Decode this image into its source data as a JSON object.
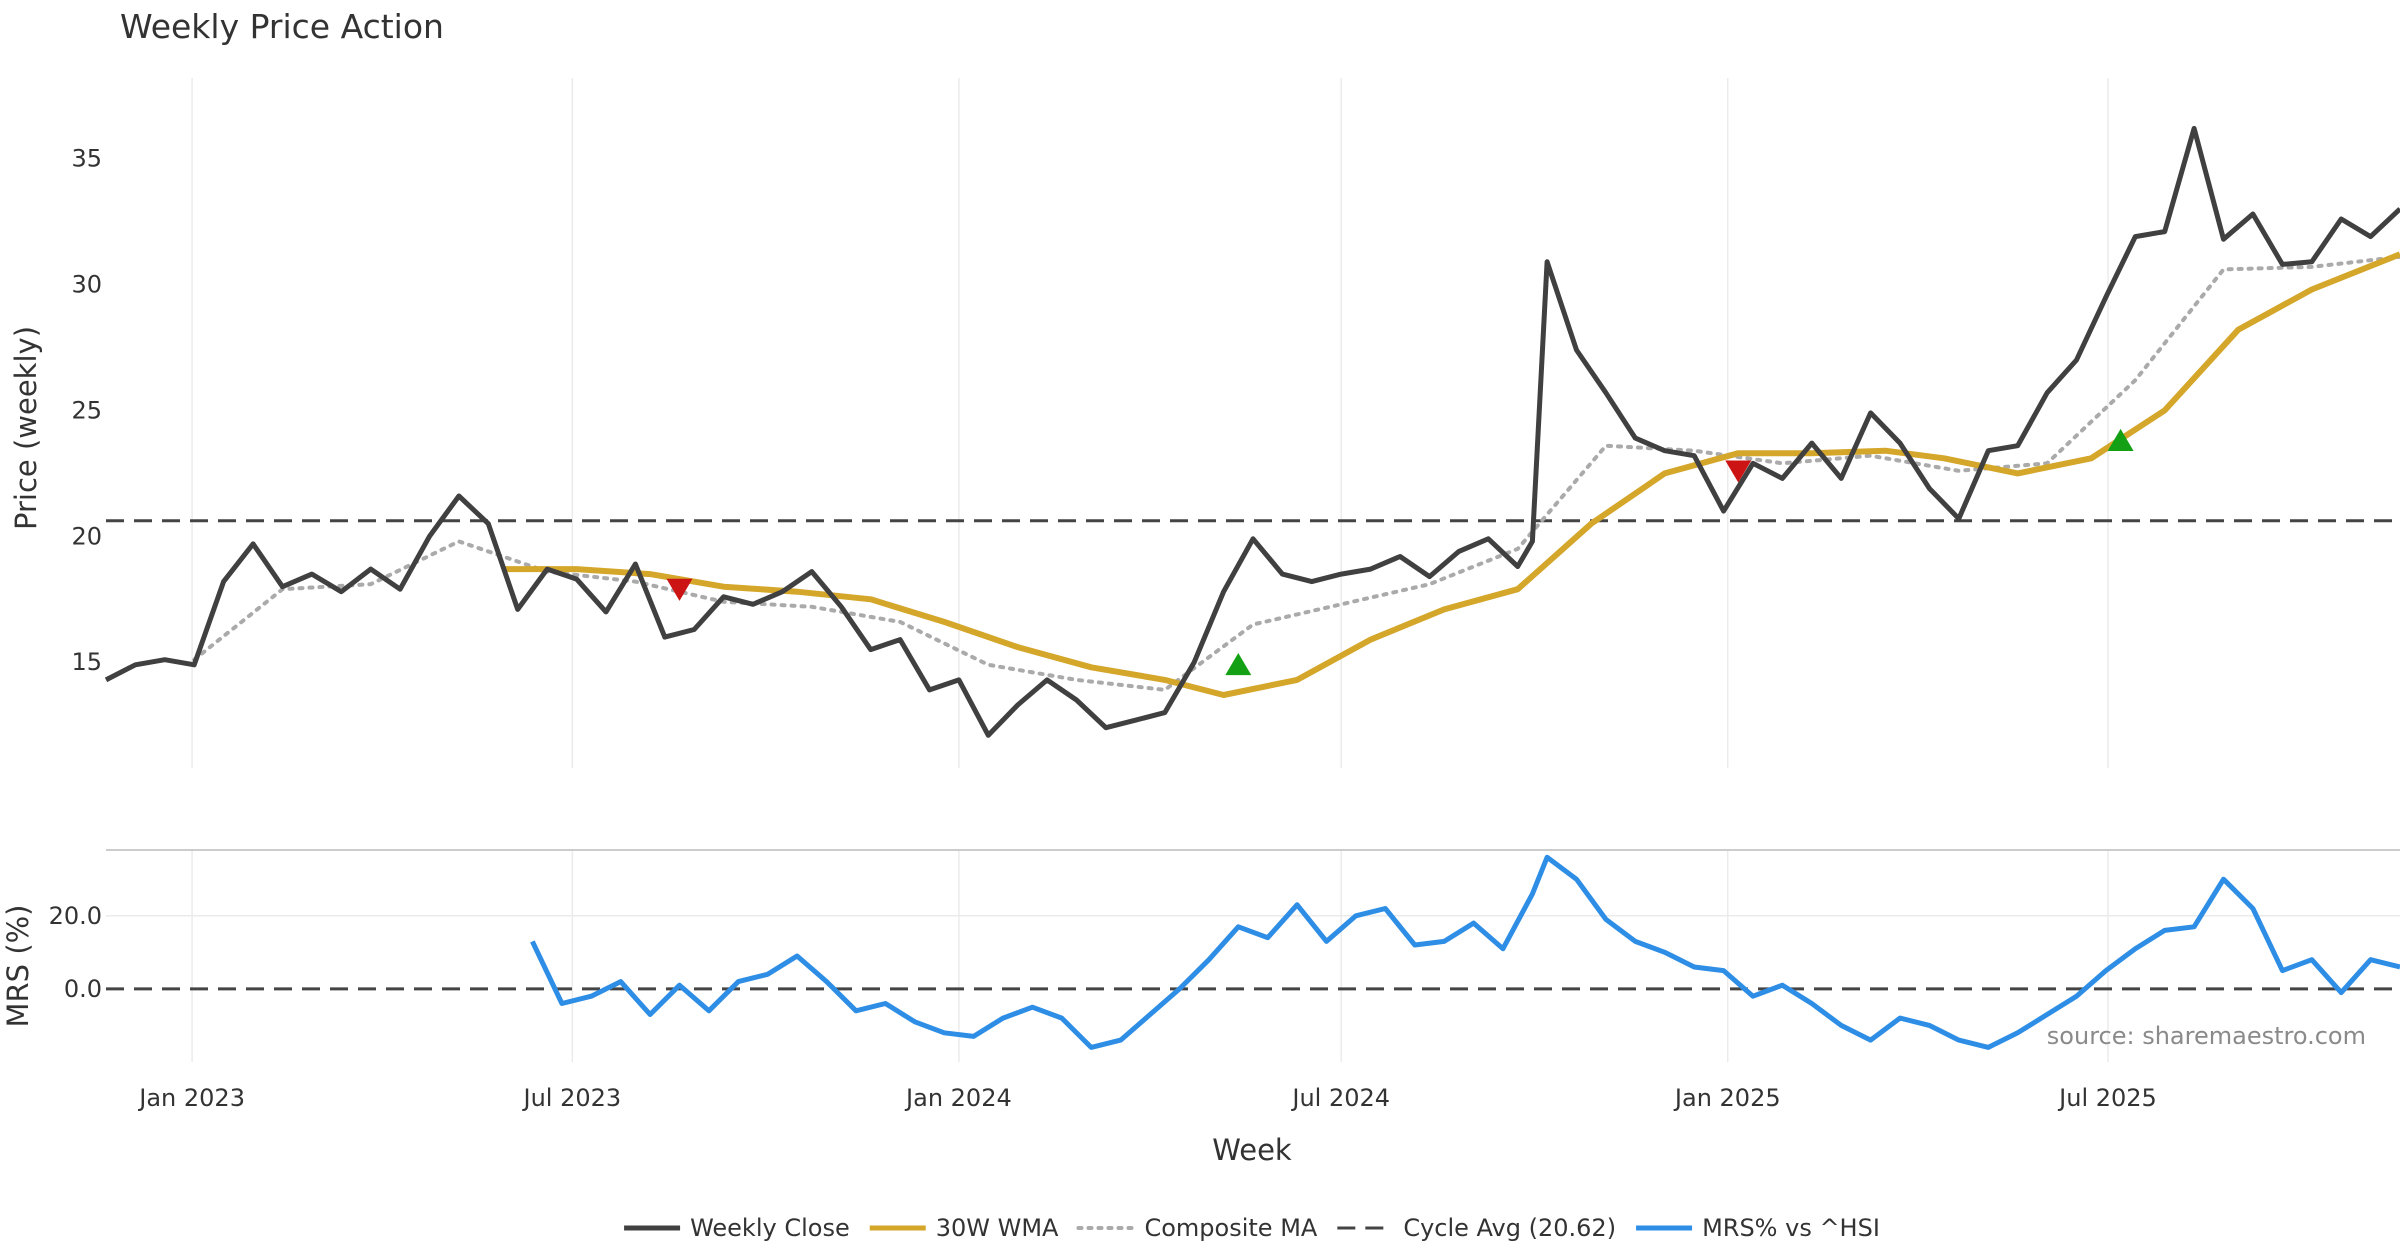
{
  "chart_data": {
    "type": "line",
    "title": "Weekly Price Action",
    "source_note": "source: sharemaestro.com",
    "xlabel": "Week",
    "x_ticks": [
      {
        "date": "2023-01-01",
        "label": "Jan 2023"
      },
      {
        "date": "2023-07-01",
        "label": "Jul 2023"
      },
      {
        "date": "2024-01-01",
        "label": "Jan 2024"
      },
      {
        "date": "2024-07-01",
        "label": "Jul 2024"
      },
      {
        "date": "2025-01-01",
        "label": "Jan 2025"
      },
      {
        "date": "2025-07-01",
        "label": "Jul 2025"
      }
    ],
    "x_range": [
      "2022-11-21",
      "2025-11-17"
    ],
    "grid": "vertical lines at month ticks",
    "legend_position": "bottom-center",
    "legend": [
      {
        "label": "Weekly Close",
        "style": "solid",
        "color": "#404040"
      },
      {
        "label": "30W WMA",
        "style": "solid",
        "color": "#d4a62a"
      },
      {
        "label": "Composite MA",
        "style": "dotted",
        "color": "#aaaaaa"
      },
      {
        "label": "Cycle Avg (20.62)",
        "style": "dashed",
        "color": "#444444"
      },
      {
        "label": "MRS% vs ^HSI",
        "style": "solid",
        "color": "#2e8ee6"
      }
    ],
    "colors": {
      "close": "#404040",
      "wma": "#d4a62a",
      "composite": "#aaaaaa",
      "cycle": "#444444",
      "mrs": "#2e8ee6",
      "buy_marker": "#14a014",
      "sell_marker": "#cc1414"
    },
    "price_panel": {
      "ylabel": "Price (weekly)",
      "ylim": [
        10.8,
        38.2
      ],
      "yticks": [
        15,
        20,
        25,
        30,
        35
      ],
      "cycle_avg": 20.62,
      "series": [
        {
          "key": "close",
          "name": "Weekly Close",
          "x": [
            "2022-11-21",
            "2022-12-05",
            "2022-12-19",
            "2023-01-02",
            "2023-01-16",
            "2023-01-30",
            "2023-02-13",
            "2023-02-27",
            "2023-03-13",
            "2023-03-27",
            "2023-04-10",
            "2023-04-24",
            "2023-05-08",
            "2023-05-22",
            "2023-06-05",
            "2023-06-19",
            "2023-07-03",
            "2023-07-17",
            "2023-07-31",
            "2023-08-14",
            "2023-08-28",
            "2023-09-11",
            "2023-09-25",
            "2023-10-09",
            "2023-10-23",
            "2023-11-06",
            "2023-11-20",
            "2023-12-04",
            "2023-12-18",
            "2024-01-01",
            "2024-01-15",
            "2024-01-29",
            "2024-02-12",
            "2024-02-26",
            "2024-03-11",
            "2024-03-25",
            "2024-04-08",
            "2024-04-22",
            "2024-05-06",
            "2024-05-20",
            "2024-06-03",
            "2024-06-17",
            "2024-07-01",
            "2024-07-15",
            "2024-07-29",
            "2024-08-12",
            "2024-08-26",
            "2024-09-09",
            "2024-09-23",
            "2024-09-30",
            "2024-10-07",
            "2024-10-21",
            "2024-11-04",
            "2024-11-18",
            "2024-12-02",
            "2024-12-16",
            "2024-12-30",
            "2025-01-13",
            "2025-01-27",
            "2025-02-10",
            "2025-02-24",
            "2025-03-10",
            "2025-03-24",
            "2025-04-07",
            "2025-04-21",
            "2025-05-05",
            "2025-05-19",
            "2025-06-02",
            "2025-06-16",
            "2025-06-30",
            "2025-07-14",
            "2025-07-28",
            "2025-08-11",
            "2025-08-25",
            "2025-09-08",
            "2025-09-22",
            "2025-10-06",
            "2025-10-20",
            "2025-11-03",
            "2025-11-17"
          ],
          "values": [
            14.3,
            14.9,
            15.1,
            14.9,
            18.2,
            19.7,
            18.0,
            18.5,
            17.8,
            18.7,
            17.9,
            20.0,
            21.6,
            20.5,
            17.1,
            18.7,
            18.3,
            17.0,
            18.9,
            16.0,
            16.3,
            17.6,
            17.3,
            17.8,
            18.6,
            17.2,
            15.5,
            15.9,
            13.9,
            14.3,
            12.1,
            13.3,
            14.3,
            13.5,
            12.4,
            12.7,
            13.0,
            15.0,
            17.8,
            19.9,
            18.5,
            18.2,
            18.5,
            18.7,
            19.2,
            18.4,
            19.4,
            19.9,
            18.8,
            19.8,
            30.9,
            27.4,
            25.7,
            23.9,
            23.4,
            23.2,
            21.0,
            22.9,
            22.3,
            23.7,
            22.3,
            24.9,
            23.7,
            21.9,
            20.7,
            23.4,
            23.6,
            25.7,
            27.0,
            29.5,
            31.9,
            32.1,
            36.2,
            31.8,
            32.8,
            30.8,
            30.9,
            32.6,
            31.9,
            33.0
          ]
        },
        {
          "key": "wma",
          "name": "30W WMA",
          "x": [
            "2023-05-29",
            "2023-07-03",
            "2023-08-07",
            "2023-09-11",
            "2023-10-16",
            "2023-11-20",
            "2023-12-25",
            "2024-01-29",
            "2024-03-04",
            "2024-04-08",
            "2024-05-06",
            "2024-06-10",
            "2024-07-15",
            "2024-08-19",
            "2024-09-23",
            "2024-10-28",
            "2024-12-02",
            "2025-01-06",
            "2025-02-10",
            "2025-03-17",
            "2025-04-14",
            "2025-05-19",
            "2025-06-23",
            "2025-07-28",
            "2025-09-01",
            "2025-10-06",
            "2025-11-17"
          ],
          "values": [
            18.7,
            18.7,
            18.5,
            18.0,
            17.8,
            17.5,
            16.6,
            15.6,
            14.8,
            14.3,
            13.7,
            14.3,
            15.9,
            17.1,
            17.9,
            20.5,
            22.5,
            23.3,
            23.3,
            23.4,
            23.1,
            22.5,
            23.1,
            25.0,
            28.2,
            29.8,
            31.2
          ]
        },
        {
          "key": "composite",
          "name": "Composite MA",
          "x": [
            "2023-01-02",
            "2023-02-13",
            "2023-03-27",
            "2023-05-08",
            "2023-06-19",
            "2023-07-31",
            "2023-09-11",
            "2023-10-23",
            "2023-12-04",
            "2024-01-15",
            "2024-02-26",
            "2024-04-08",
            "2024-05-20",
            "2024-07-01",
            "2024-08-12",
            "2024-09-23",
            "2024-11-04",
            "2024-12-16",
            "2025-01-27",
            "2025-03-10",
            "2025-04-21",
            "2025-06-02",
            "2025-07-14",
            "2025-08-25",
            "2025-10-06",
            "2025-11-17"
          ],
          "values": [
            15.1,
            17.9,
            18.1,
            19.8,
            18.6,
            18.2,
            17.4,
            17.2,
            16.6,
            14.9,
            14.3,
            13.9,
            16.5,
            17.3,
            18.1,
            19.5,
            23.6,
            23.4,
            22.9,
            23.2,
            22.6,
            22.9,
            26.2,
            30.6,
            30.7,
            31.1
          ]
        }
      ],
      "markers": [
        {
          "type": "sell",
          "x": "2023-08-21",
          "y": 17.9
        },
        {
          "type": "buy",
          "x": "2024-05-13",
          "y": 14.9
        },
        {
          "type": "sell",
          "x": "2025-01-06",
          "y": 22.6
        },
        {
          "type": "buy",
          "x": "2025-07-07",
          "y": 23.8
        }
      ]
    },
    "mrs_panel": {
      "ylabel": "MRS (%)",
      "ylim": [
        -20,
        38
      ],
      "yticks": [
        0,
        20
      ],
      "ytick_labels": [
        "0.0",
        "20.0"
      ],
      "zero_line": 0,
      "series": [
        {
          "key": "mrs",
          "name": "MRS% vs ^HSI",
          "x": [
            "2023-06-12",
            "2023-06-26",
            "2023-07-10",
            "2023-07-24",
            "2023-08-07",
            "2023-08-21",
            "2023-09-04",
            "2023-09-18",
            "2023-10-02",
            "2023-10-16",
            "2023-10-30",
            "2023-11-13",
            "2023-11-27",
            "2023-12-11",
            "2023-12-25",
            "2024-01-08",
            "2024-01-22",
            "2024-02-05",
            "2024-02-19",
            "2024-03-04",
            "2024-03-18",
            "2024-04-01",
            "2024-04-15",
            "2024-04-29",
            "2024-05-13",
            "2024-05-27",
            "2024-06-10",
            "2024-06-24",
            "2024-07-08",
            "2024-07-22",
            "2024-08-05",
            "2024-08-19",
            "2024-09-02",
            "2024-09-16",
            "2024-09-30",
            "2024-10-07",
            "2024-10-21",
            "2024-11-04",
            "2024-11-18",
            "2024-12-02",
            "2024-12-16",
            "2024-12-30",
            "2025-01-13",
            "2025-01-27",
            "2025-02-10",
            "2025-02-24",
            "2025-03-10",
            "2025-03-24",
            "2025-04-07",
            "2025-04-21",
            "2025-05-05",
            "2025-05-19",
            "2025-06-02",
            "2025-06-16",
            "2025-06-30",
            "2025-07-14",
            "2025-07-28",
            "2025-08-11",
            "2025-08-25",
            "2025-09-08",
            "2025-09-22",
            "2025-10-06",
            "2025-10-20",
            "2025-11-03",
            "2025-11-17"
          ],
          "values": [
            13,
            -4,
            -2,
            2,
            -7,
            1,
            -6,
            2,
            4,
            9,
            2,
            -6,
            -4,
            -9,
            -12,
            -13,
            -8,
            -5,
            -8,
            -16,
            -14,
            -7,
            0,
            8,
            17,
            14,
            23,
            13,
            20,
            22,
            12,
            13,
            18,
            11,
            26,
            36,
            30,
            19,
            13,
            10,
            6,
            5,
            -2,
            1,
            -4,
            -10,
            -14,
            -8,
            -10,
            -14,
            -16,
            -12,
            -7,
            -2,
            5,
            11,
            16,
            17,
            30,
            22,
            5,
            8,
            -1,
            8,
            6
          ]
        }
      ]
    }
  }
}
